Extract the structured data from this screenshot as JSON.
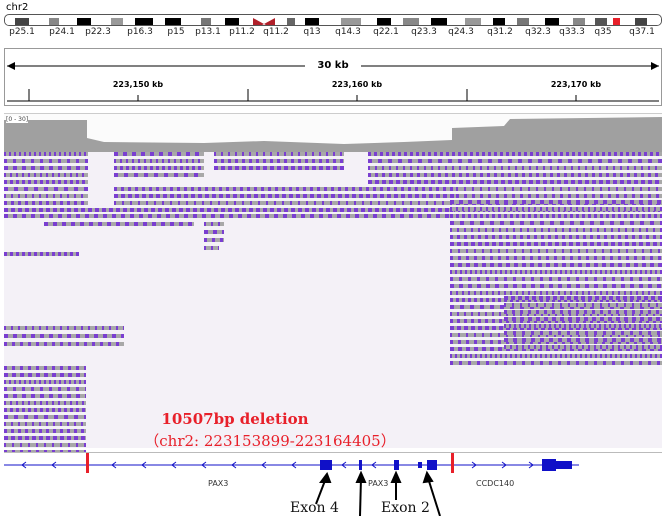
{
  "chromosome": {
    "name": "chr2",
    "bands": [
      "p25.1",
      "p24.1",
      "p22.3",
      "p16.3",
      "p15",
      "p13.1",
      "p11.2",
      "q11.2",
      "q13",
      "q14.3",
      "q22.1",
      "q23.3",
      "q24.3",
      "q31.2",
      "q32.3",
      "q33.3",
      "q35",
      "q37.1"
    ]
  },
  "ruler": {
    "span_label": "30 kb",
    "ticks": [
      "223,150 kb",
      "223,160 kb",
      "223,170 kb"
    ]
  },
  "coverage": {
    "range_label": "[0 - 30]"
  },
  "genes": {
    "left": "PAX3",
    "middle": "PAX3",
    "right": "CCDC140"
  },
  "annotation": {
    "deletion_title": "10507bp deletion",
    "deletion_coords": "（chr2: 223153899-223164405）",
    "exon4_label": "Exon 4",
    "exon2_label": "Exon 2"
  },
  "colors": {
    "read_purple": "#7a3ed1",
    "read_gray": "#a8a8a8",
    "coverage_gray": "#a0a0a0",
    "deletion_red": "#e8202a",
    "gene_blue": "#1010c8"
  }
}
